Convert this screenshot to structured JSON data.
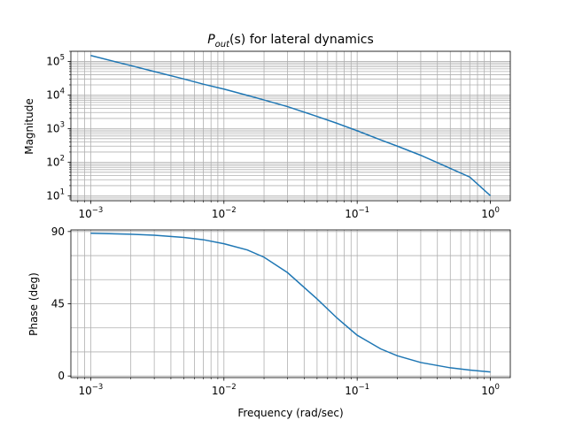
{
  "chart_data": [
    {
      "type": "line",
      "title_main": "P",
      "title_sub": "out",
      "title_rest": "(s) for lateral dynamics",
      "xlabel": "",
      "ylabel": "Magnitude",
      "xscale": "log",
      "yscale": "log",
      "xlim": [
        0.00071,
        1.41
      ],
      "ylim": [
        7.1,
        200000
      ],
      "grid": true,
      "minor_grid": true,
      "x_ticks": [
        {
          "value": 0.001,
          "base": "10",
          "exp": "−3"
        },
        {
          "value": 0.01,
          "base": "10",
          "exp": "−2"
        },
        {
          "value": 0.1,
          "base": "10",
          "exp": "−1"
        },
        {
          "value": 1,
          "base": "10",
          "exp": "0"
        }
      ],
      "y_ticks": [
        {
          "value": 10,
          "base": "10",
          "exp": "1"
        },
        {
          "value": 100,
          "base": "10",
          "exp": "2"
        },
        {
          "value": 1000,
          "base": "10",
          "exp": "3"
        },
        {
          "value": 10000,
          "base": "10",
          "exp": "4"
        },
        {
          "value": 100000,
          "base": "10",
          "exp": "5"
        }
      ],
      "color": "#1f77b4",
      "series": [
        {
          "x": [
            0.001,
            0.002,
            0.003,
            0.005,
            0.007,
            0.01,
            0.015,
            0.02,
            0.03,
            0.05,
            0.07,
            0.1,
            0.15,
            0.2,
            0.3,
            0.5,
            0.7,
            1.0
          ],
          "y": [
            150000,
            75000,
            50000,
            30000,
            21000,
            15000,
            9700,
            7100,
            4500,
            2300,
            1450,
            860,
            460,
            300,
            160,
            65,
            36,
            10
          ]
        }
      ]
    },
    {
      "type": "line",
      "xlabel": "Frequency (rad/sec)",
      "ylabel": "Phase (deg)",
      "xscale": "log",
      "yscale": "linear",
      "xlim": [
        0.00071,
        1.41
      ],
      "ylim": [
        -1,
        91
      ],
      "grid": true,
      "minor_grid": true,
      "x_ticks": [
        {
          "value": 0.001,
          "base": "10",
          "exp": "−3"
        },
        {
          "value": 0.01,
          "base": "10",
          "exp": "−2"
        },
        {
          "value": 0.1,
          "base": "10",
          "exp": "−1"
        },
        {
          "value": 1,
          "base": "10",
          "exp": "0"
        }
      ],
      "y_ticks": [
        {
          "value": 0,
          "label": "0"
        },
        {
          "value": 45,
          "label": "45"
        },
        {
          "value": 90,
          "label": "90"
        }
      ],
      "y_grid": [
        0,
        15,
        30,
        45,
        60,
        75,
        90
      ],
      "color": "#1f77b4",
      "series": [
        {
          "x": [
            0.001,
            0.002,
            0.003,
            0.005,
            0.007,
            0.01,
            0.015,
            0.02,
            0.03,
            0.05,
            0.07,
            0.1,
            0.15,
            0.2,
            0.3,
            0.5,
            0.7,
            1.0
          ],
          "y": [
            88.9,
            88.3,
            87.7,
            86.3,
            84.9,
            82.4,
            78.5,
            74.0,
            64.4,
            48.0,
            36.4,
            25.4,
            16.9,
            12.6,
            8.4,
            5.1,
            3.7,
            2.5
          ]
        }
      ]
    }
  ]
}
